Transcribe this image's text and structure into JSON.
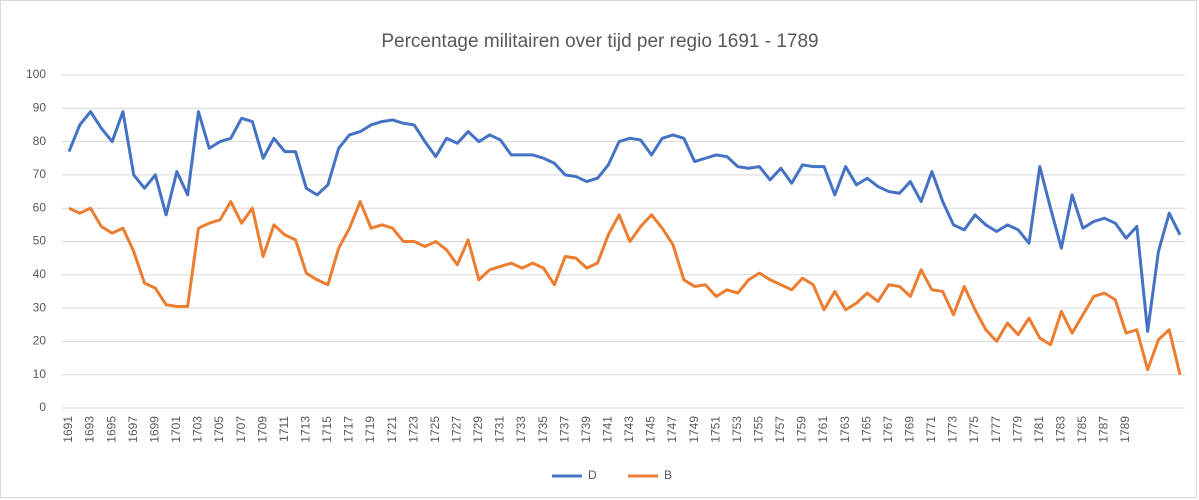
{
  "chart_data": {
    "type": "line",
    "title": "Percentage militairen over tijd per regio 1691 - 1789",
    "categories": [
      "1691",
      null,
      "1693",
      null,
      "1695",
      null,
      "1697",
      null,
      "1699",
      null,
      "1701",
      null,
      "1703",
      null,
      "1705",
      null,
      "1707",
      null,
      "1709",
      null,
      "1711",
      null,
      "1713",
      null,
      "1715",
      null,
      "1717",
      null,
      "1719",
      null,
      "1721",
      null,
      "1723",
      null,
      "1725",
      null,
      "1727",
      null,
      "1729",
      null,
      "1731",
      null,
      "1733",
      null,
      "1735",
      null,
      "1737",
      null,
      "1739",
      null,
      "1741",
      null,
      "1743",
      null,
      "1745",
      null,
      "1747",
      null,
      "1749",
      null,
      "1751",
      null,
      "1753",
      null,
      "1755",
      null,
      "1757",
      null,
      "1759",
      null,
      "1761",
      null,
      "1763",
      null,
      "1765",
      null,
      "1767",
      null,
      "1769",
      null,
      "1771",
      null,
      "1773",
      null,
      "1775",
      null,
      "1777",
      null,
      "1779",
      null,
      "1781",
      null,
      "1783",
      null,
      "1785",
      null,
      "1787",
      null,
      "1789",
      null,
      null,
      null,
      null,
      null
    ],
    "series": [
      {
        "name": "D",
        "color": "#4472c4",
        "values": [
          77,
          85,
          89,
          84,
          80,
          89,
          70,
          66,
          70,
          58,
          71,
          64,
          89,
          78,
          80,
          81,
          87,
          86,
          75,
          81,
          77,
          77,
          66,
          64,
          67,
          78,
          82,
          83,
          85,
          86,
          86.5,
          85.5,
          85,
          80,
          75.5,
          81,
          79.5,
          83,
          80,
          82,
          80.5,
          76,
          76,
          76,
          75,
          73.5,
          70,
          69.5,
          68,
          69,
          73,
          80,
          81,
          80.5,
          76,
          81,
          82,
          81,
          74,
          75,
          76,
          75.5,
          72.5,
          72,
          72.5,
          68.5,
          72,
          67.5,
          73,
          72.5,
          72.5,
          64,
          72.5,
          67,
          69,
          66.5,
          65,
          64.5,
          68,
          62,
          71,
          62,
          55,
          53.5,
          58,
          55,
          53,
          55,
          53.5,
          49.5,
          72.5,
          60,
          48,
          64,
          54,
          56,
          57,
          55.5,
          51,
          54.5,
          23,
          47,
          58.5,
          52
        ]
      },
      {
        "name": "B",
        "color": "#ed7d31",
        "values": [
          60,
          58.5,
          60,
          54.5,
          52.5,
          54,
          47,
          37.5,
          36,
          31,
          30.5,
          30.5,
          54,
          55.5,
          56.5,
          62,
          55.5,
          60,
          45.5,
          55,
          52,
          50.5,
          40.5,
          38.5,
          37,
          48,
          54,
          62,
          54,
          55,
          54,
          50,
          50,
          48.5,
          50,
          47.5,
          43,
          50.5,
          38.5,
          41.5,
          42.5,
          43.5,
          42,
          43.5,
          42,
          37,
          45.5,
          45,
          42,
          43.5,
          52,
          58,
          50,
          54.5,
          58,
          54,
          49,
          38.5,
          36.5,
          37,
          33.5,
          35.5,
          34.5,
          38.5,
          40.5,
          38.5,
          37,
          35.5,
          39,
          37,
          29.5,
          35,
          29.5,
          31.5,
          34.5,
          32,
          37,
          36.5,
          33.5,
          41.5,
          35.5,
          35,
          28,
          36.5,
          29.5,
          23.5,
          20,
          25.5,
          22,
          27,
          21,
          19,
          29,
          22.5,
          28,
          33.5,
          34.5,
          32.5,
          22.5,
          23.5,
          11.5,
          20.5,
          23.5,
          10
        ]
      }
    ],
    "ylim": [
      0,
      100
    ],
    "yticks": [
      0,
      10,
      20,
      30,
      40,
      50,
      60,
      70,
      80,
      90,
      100
    ],
    "grid": true,
    "legend": "bottom"
  }
}
